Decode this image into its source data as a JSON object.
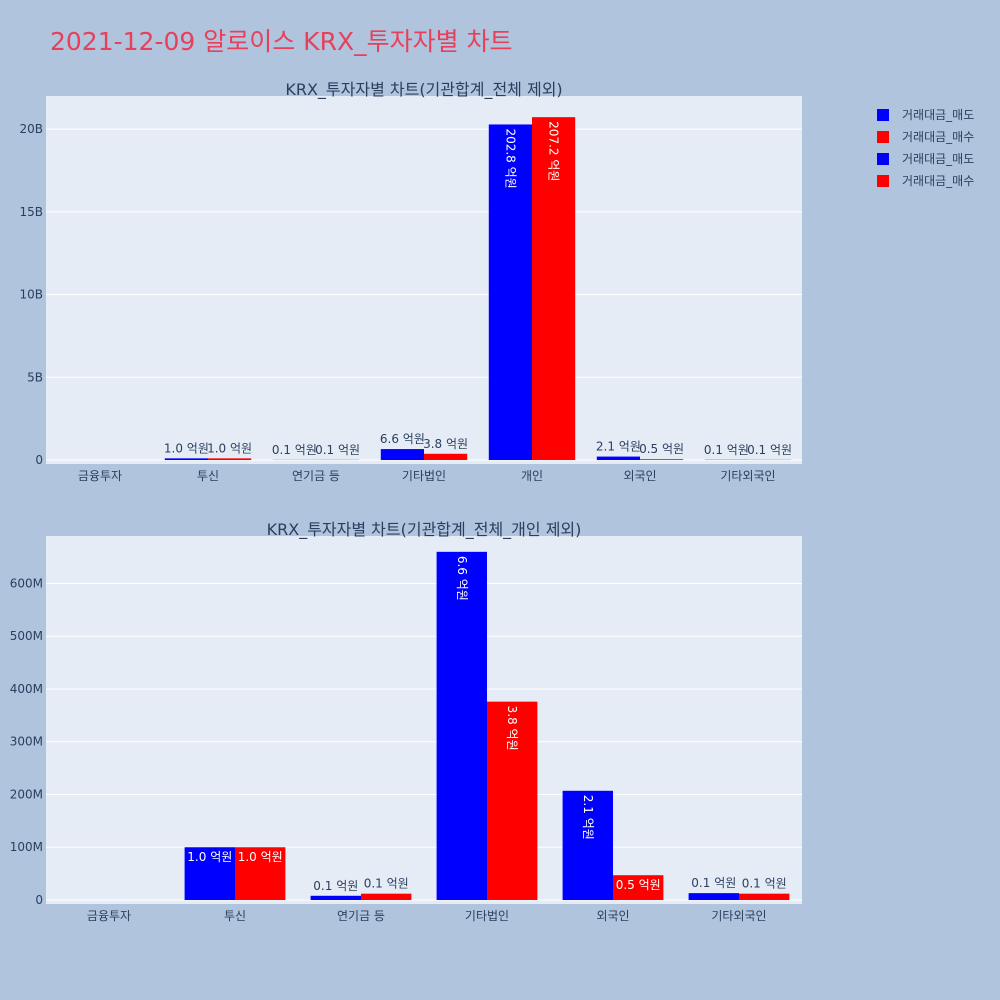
{
  "page_title": "2021-12-09 알로이스 KRX_투자자별 차트",
  "colors": {
    "sell": "#0000ff",
    "buy": "#ff0000",
    "title": "#e8405a",
    "background": "#b0c4de",
    "plot": "#e5ecf6"
  },
  "legend": {
    "placement": "top-right",
    "items": [
      {
        "label": "거래대금_매도",
        "color": "#0000ff"
      },
      {
        "label": "거래대금_매수",
        "color": "#ff0000"
      },
      {
        "label": "거래대금_매도",
        "color": "#0000ff"
      },
      {
        "label": "거래대금_매수",
        "color": "#ff0000"
      }
    ]
  },
  "chart_data": [
    {
      "type": "bar",
      "title": "KRX_투자자별 차트(기관합계_전체 제외)",
      "categories": [
        "금융투자",
        "투신",
        "연기금 등",
        "기타법인",
        "개인",
        "외국인",
        "기타외국인"
      ],
      "ylim": [
        0,
        22000000000
      ],
      "yticks": [
        0,
        5000000000,
        10000000000,
        15000000000,
        20000000000
      ],
      "ytick_labels": [
        "0",
        "5B",
        "10B",
        "15B",
        "20B"
      ],
      "grid": true,
      "series": [
        {
          "name": "거래대금_매도",
          "color": "#0000ff",
          "values": [
            0,
            100000000,
            8000000,
            660000000,
            20280000000,
            207000000,
            13000000
          ],
          "labels": [
            "",
            "1.0 억원",
            "0.1 억원",
            "6.6 억원",
            "202.8 억원",
            "2.1 억원",
            "0.1 억원"
          ]
        },
        {
          "name": "거래대금_매수",
          "color": "#ff0000",
          "values": [
            0,
            100000000,
            12000000,
            376000000,
            20720000000,
            47000000,
            12000000
          ],
          "labels": [
            "",
            "1.0 억원",
            "0.1 억원",
            "3.8 억원",
            "207.2 억원",
            "0.5 억원",
            "0.1 억원"
          ]
        }
      ]
    },
    {
      "type": "bar",
      "title": "KRX_투자자별 차트(기관합계_전체_개인 제외)",
      "categories": [
        "금융투자",
        "투신",
        "연기금 등",
        "기타법인",
        "외국인",
        "기타외국인"
      ],
      "ylim": [
        0,
        690000000
      ],
      "yticks": [
        0,
        100000000,
        200000000,
        300000000,
        400000000,
        500000000,
        600000000
      ],
      "ytick_labels": [
        "0",
        "100M",
        "200M",
        "300M",
        "400M",
        "500M",
        "600M"
      ],
      "grid": true,
      "series": [
        {
          "name": "거래대금_매도",
          "color": "#0000ff",
          "values": [
            0,
            100000000,
            8000000,
            660000000,
            207000000,
            13000000
          ],
          "labels": [
            "",
            "1.0 억원",
            "0.1 억원",
            "6.6 억원",
            "2.1 억원",
            "0.1 억원"
          ]
        },
        {
          "name": "거래대금_매수",
          "color": "#ff0000",
          "values": [
            0,
            100000000,
            12000000,
            376000000,
            47000000,
            12000000
          ],
          "labels": [
            "",
            "1.0 억원",
            "0.1 억원",
            "3.8 억원",
            "0.5 억원",
            "0.1 억원"
          ]
        }
      ]
    }
  ]
}
